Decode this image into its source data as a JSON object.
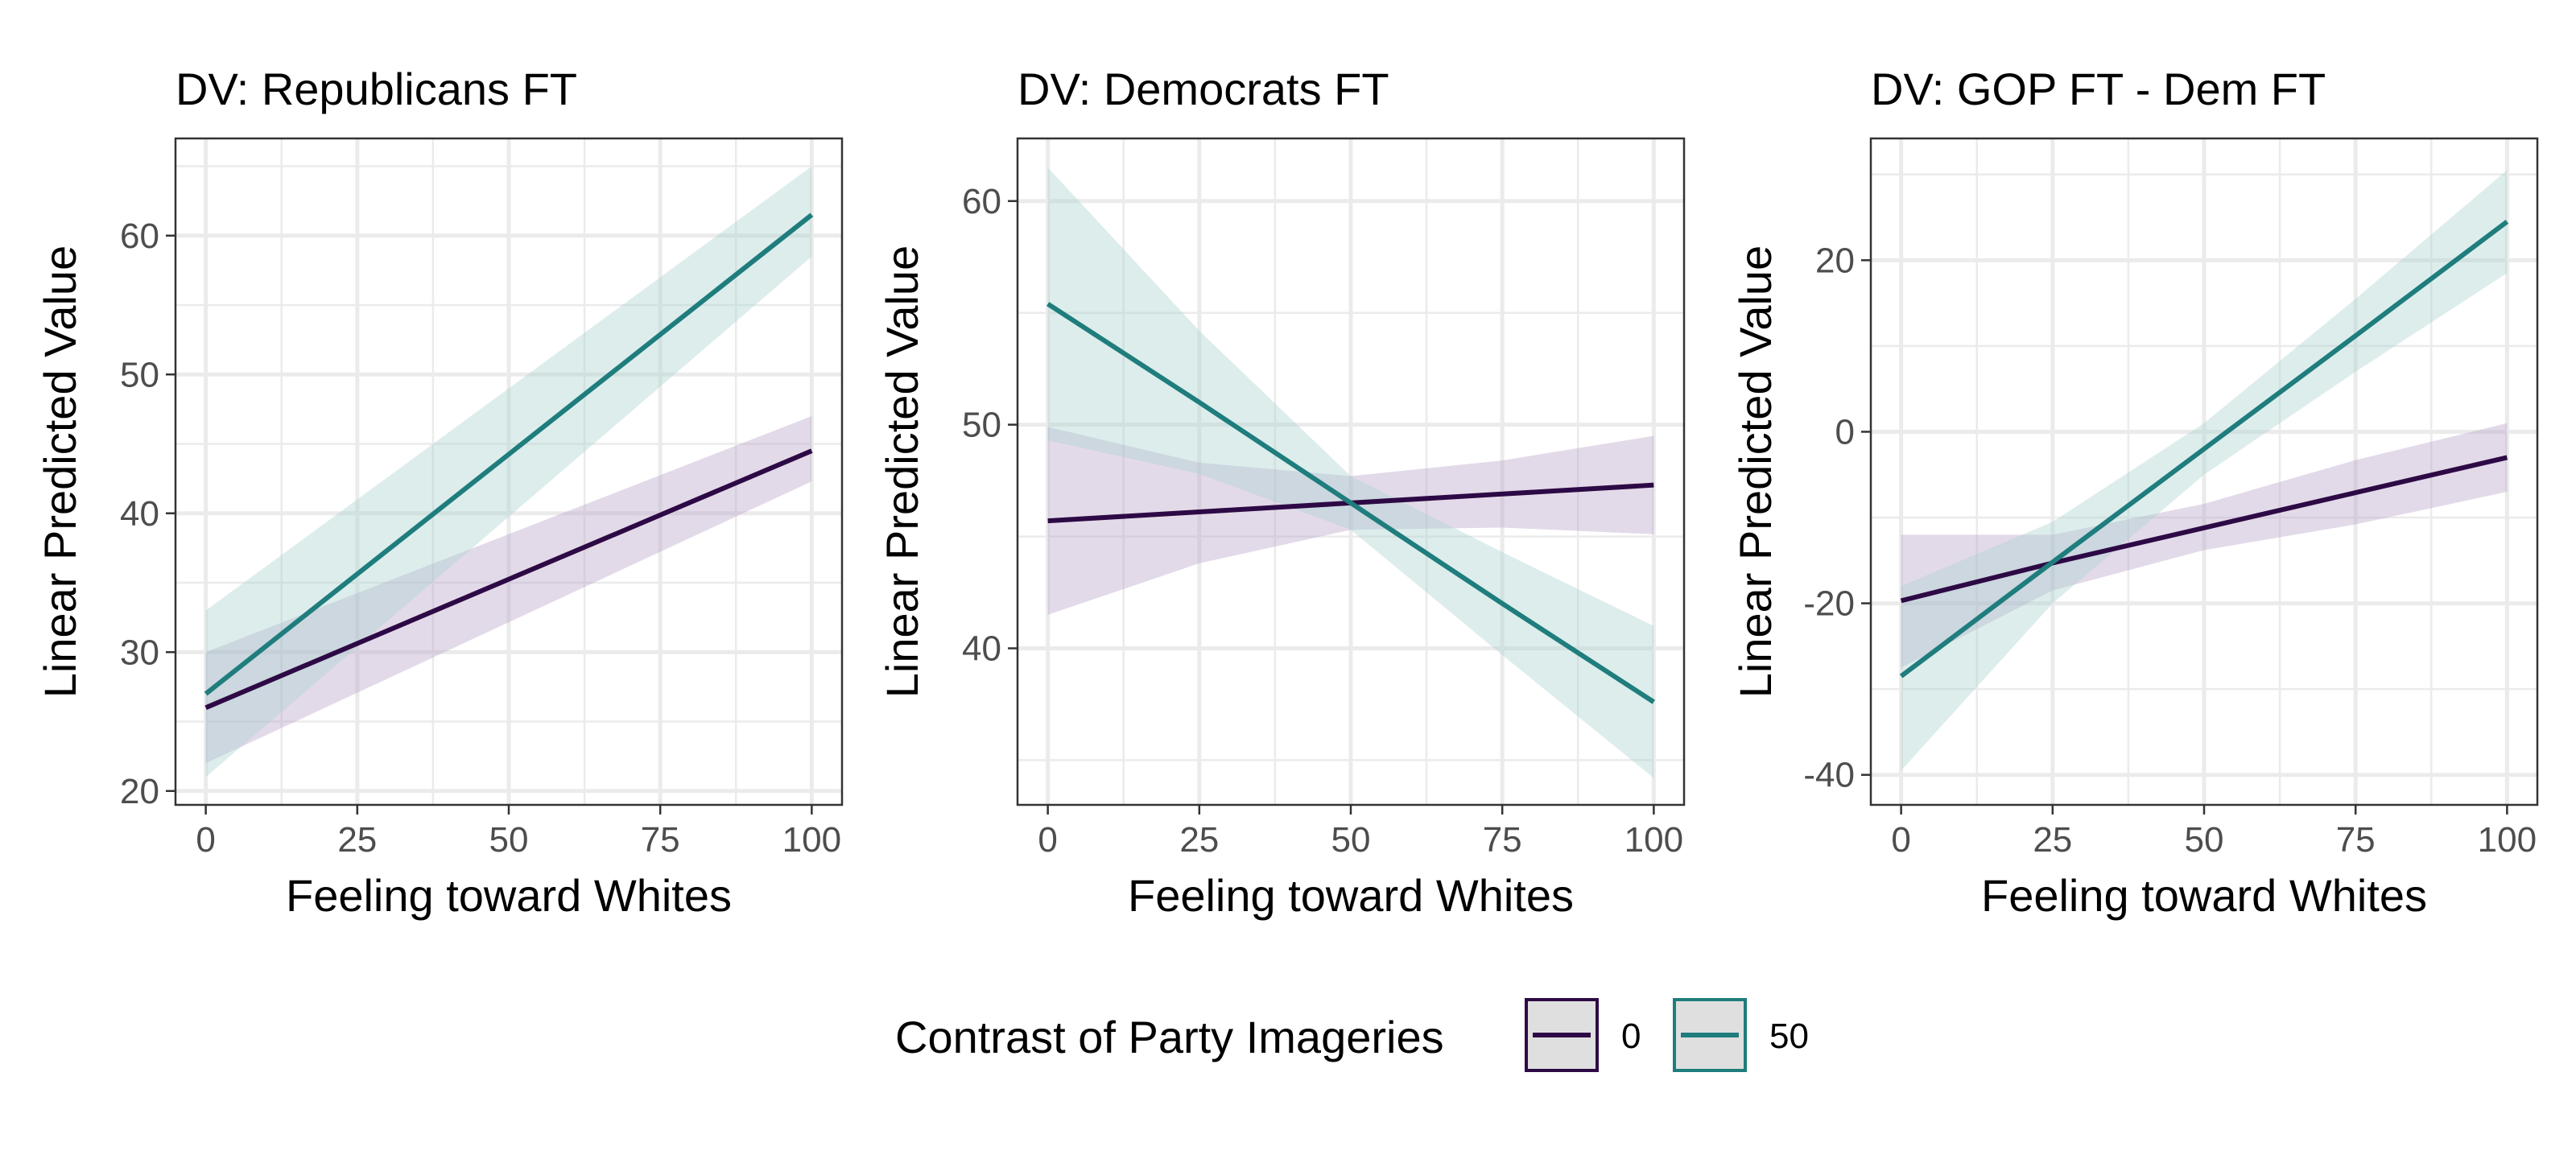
{
  "chart_data": [
    {
      "type": "line",
      "title": "DV: Republicans FT",
      "xlabel": "Feeling toward Whites",
      "ylabel": "Linear Predicted Value",
      "xlim": [
        -5,
        105
      ],
      "ylim": [
        19,
        67
      ],
      "x_ticks": [
        0,
        25,
        50,
        75,
        100
      ],
      "x_tick_labels": [
        "0",
        "25",
        "50",
        "75",
        "100"
      ],
      "y_ticks": [
        20,
        30,
        40,
        50,
        60
      ],
      "y_tick_labels": [
        "20",
        "30",
        "40",
        "50",
        "60"
      ],
      "grid": true,
      "series": [
        {
          "name": "0",
          "color": "#2d0a45",
          "fill": "#b8a3c9",
          "x": [
            0,
            100
          ],
          "y": [
            26,
            44.5
          ],
          "lower": [
            22,
            42.3
          ],
          "upper": [
            30,
            47
          ]
        },
        {
          "name": "50",
          "color": "#1f7d7d",
          "fill": "#a9d2cf",
          "x": [
            0,
            100
          ],
          "y": [
            27,
            61.5
          ],
          "lower": [
            21,
            58.5
          ],
          "upper": [
            33,
            65
          ]
        }
      ]
    },
    {
      "type": "line",
      "title": "DV: Democrats FT",
      "xlabel": "Feeling toward Whites",
      "ylabel": "Linear Predicted Value",
      "xlim": [
        -5,
        105
      ],
      "ylim": [
        33,
        62.8
      ],
      "x_ticks": [
        0,
        25,
        50,
        75,
        100
      ],
      "x_tick_labels": [
        "0",
        "25",
        "50",
        "75",
        "100"
      ],
      "y_ticks": [
        40,
        50,
        60
      ],
      "y_tick_labels": [
        "40",
        "50",
        "60"
      ],
      "grid": true,
      "series": [
        {
          "name": "0",
          "color": "#2d0a45",
          "fill": "#b8a3c9",
          "x": [
            0,
            25,
            50,
            75,
            100
          ],
          "y": [
            45.7,
            46.1,
            46.5,
            46.9,
            47.3
          ],
          "lower": [
            41.5,
            43.8,
            45.3,
            45.4,
            45.1
          ],
          "upper": [
            49.9,
            48.3,
            47.7,
            48.4,
            49.5
          ]
        },
        {
          "name": "50",
          "color": "#1f7d7d",
          "fill": "#a9d2cf",
          "x": [
            0,
            25,
            50,
            75,
            100
          ],
          "y": [
            55.4,
            51.0,
            46.5,
            42.0,
            37.6
          ],
          "lower": [
            49.3,
            47.8,
            45.3,
            39.7,
            34.2
          ],
          "upper": [
            61.5,
            54.2,
            47.7,
            44.3,
            41.0
          ]
        }
      ]
    },
    {
      "type": "line",
      "title": "DV: GOP FT - Dem FT",
      "xlabel": "Feeling toward Whites",
      "ylabel": "Linear Predicted Value",
      "xlim": [
        -5,
        105
      ],
      "ylim": [
        -43.5,
        34.2
      ],
      "x_ticks": [
        0,
        25,
        50,
        75,
        100
      ],
      "x_tick_labels": [
        "0",
        "25",
        "50",
        "75",
        "100"
      ],
      "y_ticks": [
        -40,
        -20,
        0,
        20
      ],
      "y_tick_labels": [
        "-40",
        "-20",
        "0",
        "20"
      ],
      "grid": true,
      "series": [
        {
          "name": "0",
          "color": "#2d0a45",
          "fill": "#b8a3c9",
          "x": [
            0,
            25,
            50,
            75,
            100
          ],
          "y": [
            -19.7,
            -15.3,
            -11.2,
            -7.1,
            -3.0
          ],
          "lower": [
            -27.5,
            -18.5,
            -13.8,
            -10.8,
            -7.0
          ],
          "upper": [
            -12.0,
            -12.0,
            -8.4,
            -3.3,
            1.0
          ]
        },
        {
          "name": "50",
          "color": "#1f7d7d",
          "fill": "#a9d2cf",
          "x": [
            0,
            25,
            50,
            75,
            100
          ],
          "y": [
            -28.5,
            -15.2,
            -2.0,
            11.2,
            24.5
          ],
          "lower": [
            -39.5,
            -20.0,
            -5.0,
            7.0,
            18.5
          ],
          "upper": [
            -18.0,
            -10.5,
            1.0,
            15.5,
            30.5
          ]
        }
      ]
    }
  ],
  "legend": {
    "title": "Contrast of Party Imageries",
    "placement": "bottom",
    "items": [
      {
        "label": "0",
        "color": "#2d0a45"
      },
      {
        "label": "50",
        "color": "#1f7d7d"
      }
    ]
  }
}
